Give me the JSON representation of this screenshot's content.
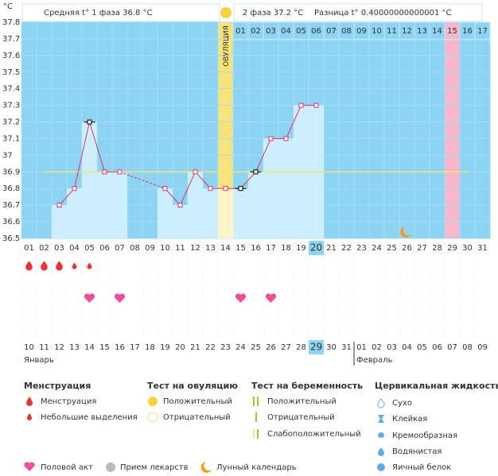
{
  "y_unit": "°C",
  "header": {
    "phase1": "Средняя t° 1 фаза 36.8 °C",
    "phase2": "2 фаза 37.2 °C",
    "difference": "Разница t° 0.40000000000001 °C"
  },
  "chart_data": {
    "type": "line",
    "categories": [
      "01",
      "02",
      "03",
      "04",
      "05",
      "06",
      "07",
      "08",
      "09",
      "10",
      "11",
      "12",
      "13",
      "14",
      "15",
      "16",
      "17",
      "18",
      "19",
      "20",
      "21",
      "22",
      "23",
      "24",
      "25",
      "26",
      "27",
      "28",
      "29",
      "30",
      "31"
    ],
    "values": [
      null,
      null,
      36.7,
      36.8,
      37.2,
      36.9,
      36.9,
      null,
      null,
      36.8,
      36.7,
      36.9,
      36.8,
      36.8,
      36.8,
      36.9,
      37.1,
      37.1,
      37.3,
      37.3,
      null,
      null,
      null,
      null,
      null,
      null,
      null,
      null,
      null,
      null,
      null
    ],
    "color": "#e0306a",
    "ylim": [
      36.5,
      37.8
    ],
    "yticks": [
      36.5,
      36.6,
      36.7,
      36.8,
      36.9,
      37,
      37.1,
      37.2,
      37.3,
      37.4,
      37.5,
      37.6,
      37.7,
      37.8
    ],
    "grid": true,
    "coverline": 36.9,
    "ovulation_day": "14",
    "ovulation_label": "ОВУЛЯЦИЯ",
    "phase2_days": [
      "01",
      "02",
      "03",
      "04",
      "05",
      "06",
      "07",
      "08",
      "09",
      "10",
      "11",
      "12",
      "13",
      "14",
      "15",
      "16",
      "17"
    ],
    "highlight_day": "29",
    "today": "20",
    "flagged_days": [
      "05",
      "15",
      "16"
    ],
    "dates": [
      "10",
      "11",
      "12",
      "13",
      "14",
      "15",
      "16",
      "17",
      "18",
      "19",
      "20",
      "21",
      "22",
      "23",
      "24",
      "25",
      "26",
      "27",
      "28",
      "29",
      "30",
      "31",
      "01",
      "02",
      "03",
      "04",
      "05",
      "06",
      "07",
      "08",
      "09"
    ],
    "weekend": [
      true,
      true,
      false,
      false,
      false,
      false,
      false,
      true,
      true,
      false,
      false,
      false,
      false,
      false,
      true,
      true,
      false,
      false,
      false,
      false,
      false,
      true,
      true,
      false,
      false,
      false,
      false,
      false,
      true,
      true,
      false
    ],
    "today_date": "29",
    "months": [
      {
        "name": "Январь",
        "from": "10"
      },
      {
        "name": "Февраль",
        "from": "01"
      }
    ],
    "menstruation_days": [
      "01",
      "02",
      "03"
    ],
    "spotting_days": [
      "04",
      "05"
    ],
    "intercourse_days": [
      "05",
      "07",
      "15",
      "17"
    ],
    "moon_days": [
      "26"
    ]
  },
  "legend": {
    "menstruation": {
      "title": "Менструация",
      "items": [
        "Менструация",
        "Небольшие выделения"
      ]
    },
    "ovulation_test": {
      "title": "Тест на овуляцию",
      "items": [
        "Положительный",
        "Отрицательный"
      ]
    },
    "pregnancy_test": {
      "title": "Тест на беременность",
      "items": [
        "Положительный",
        "Отрицательный",
        "Слабоположительный"
      ]
    },
    "cervical_fluid": {
      "title": "Цервикальная жидкость",
      "items": [
        "Сухо",
        "Клейкая",
        "Кремообразная",
        "Водянистая",
        "Яичный белок"
      ]
    },
    "other": [
      "Половой акт",
      "Прием лекарств",
      "Лунный календарь"
    ]
  }
}
